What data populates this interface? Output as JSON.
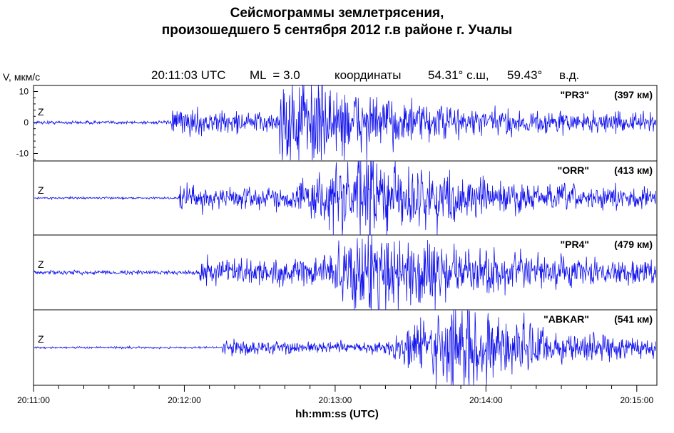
{
  "title_line1": "Сейсмограммы землетрясения,",
  "title_line2": "произошедшего 5 сентября 2012 г.в районе г. Учалы",
  "header": {
    "time": "20:11:03 UTC",
    "magnitude": "ML  = 3.0",
    "coords_label": "координаты",
    "lat": "54.31° с.ш,",
    "lon": "59.43°",
    "lon_dir": "в.д."
  },
  "chart_data": {
    "type": "line",
    "title": "Сейсмограммы землетрясения, произошедшего 5 сентября 2012 г.в районе г. Учалы",
    "xlabel": "hh:mm:ss  (UTC)",
    "ylabel": "V, мкм/с",
    "x_range_seconds": [
      0,
      248
    ],
    "x_ticks": [
      "20:11:00",
      "20:12:00",
      "20:13:00",
      "20:14:00",
      "20:15:00"
    ],
    "y_ticks": [
      "10",
      "0",
      "-10"
    ],
    "ylim": [
      -12,
      12
    ],
    "grid": false,
    "series": [
      {
        "name": "\"PR3\"",
        "distance": "(397 км)",
        "component": "Z",
        "onset_p_s": 55,
        "onset_s_s": 98,
        "peak_s": 107,
        "noise_amp": 0.5,
        "p_amp": 3.5,
        "s_amp": 12
      },
      {
        "name": "\"ORR\"",
        "distance": "(413 км)",
        "component": "Z",
        "onset_p_s": 58,
        "onset_s_s": 104,
        "peak_s": 133,
        "noise_amp": 0.3,
        "p_amp": 4,
        "s_amp": 11
      },
      {
        "name": "\"PR4\"",
        "distance": "(479 км)",
        "component": "Z",
        "onset_p_s": 66,
        "onset_s_s": 115,
        "peak_s": 138,
        "noise_amp": 0.6,
        "p_amp": 4,
        "s_amp": 11
      },
      {
        "name": "\"ABKAR\"",
        "distance": "(541 км)",
        "component": "Z",
        "onset_p_s": 75,
        "onset_s_s": 140,
        "peak_s": 170,
        "noise_amp": 0.3,
        "p_amp": 2,
        "s_amp": 12
      }
    ]
  },
  "colors": {
    "trace": "#1010ee",
    "axis": "#000000"
  }
}
